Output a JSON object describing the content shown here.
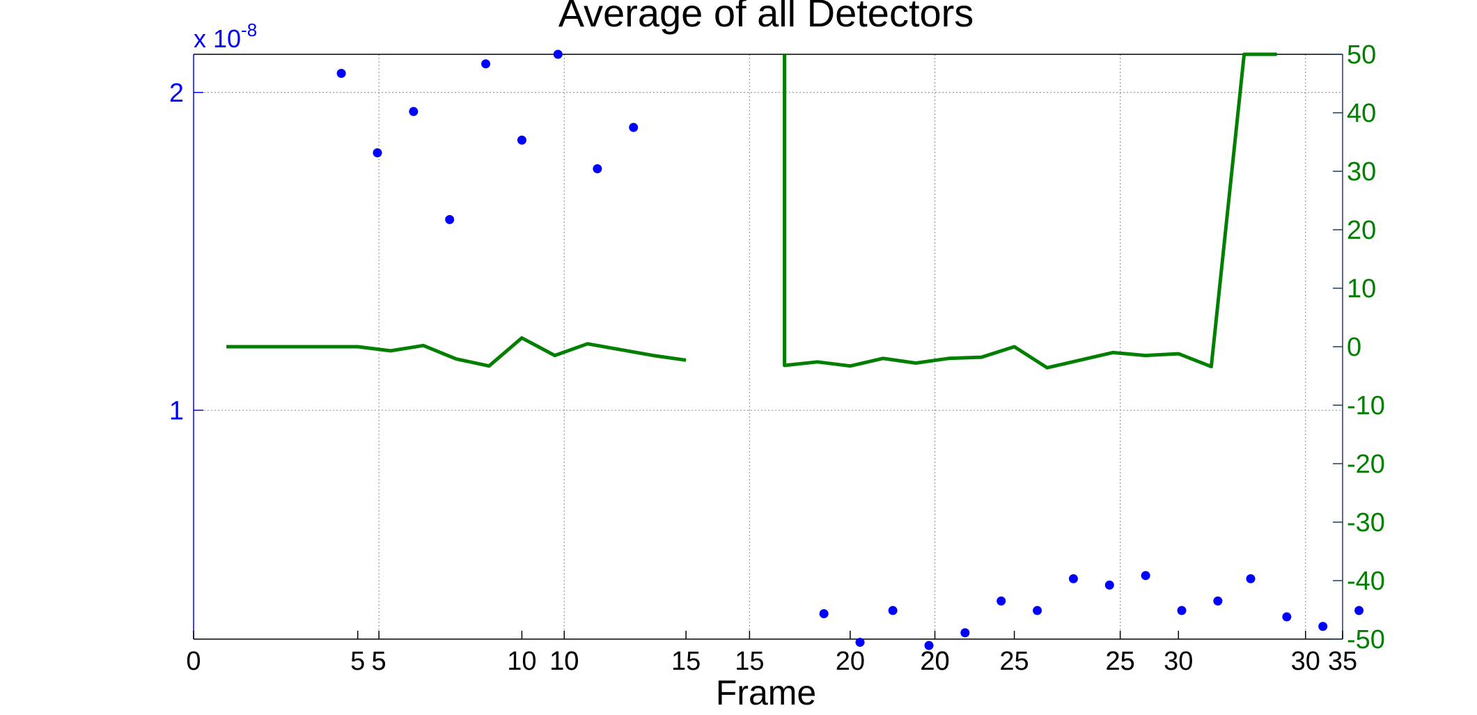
{
  "chart_data": {
    "type": "line",
    "title": "Average of all Detectors",
    "xlabel": "Frame",
    "left_axis": {
      "exponent_label": "x 10",
      "exponent_value": "-8",
      "ylim": [
        0.28,
        2.12
      ],
      "ticks": [
        1,
        2
      ],
      "tick_labels": [
        "1",
        "2"
      ],
      "color": "#0000ff"
    },
    "right_axis": {
      "ylim": [
        -50,
        50
      ],
      "ticks": [
        50,
        40,
        30,
        20,
        10,
        0,
        -10,
        -20,
        -30,
        -40,
        -50
      ],
      "tick_labels": [
        "50",
        "40",
        "30",
        "20",
        "10",
        "0",
        "-10",
        "-20",
        "-30",
        "-40",
        "-50"
      ],
      "color": "#007f00"
    },
    "x_axis_lower": {
      "xlim": [
        0,
        35
      ],
      "ticks": [
        0,
        5,
        10,
        15,
        20,
        25,
        30,
        35
      ],
      "tick_labels": [
        "0",
        "5",
        "10",
        "15",
        "20",
        "25",
        "30",
        "35"
      ]
    },
    "x_axis_upper_run": {
      "xlim": [
        0,
        31
      ],
      "ticks": [
        5,
        10,
        15,
        20,
        25,
        30
      ],
      "tick_labels": [
        "5",
        "10",
        "15",
        "20",
        "25",
        "30"
      ]
    },
    "x_axis_extra_run": {
      "xlim": [
        0,
        31
      ],
      "ticks": [
        5,
        10,
        20,
        25
      ],
      "tick_labels": [
        "5",
        "10",
        "20",
        "25"
      ]
    },
    "grid": true,
    "series": [
      {
        "type": "scatter",
        "axis": "left",
        "color": "#0000ff",
        "x": [
          4.5,
          5.6,
          6.7,
          7.8,
          8.9,
          10.0,
          11.1,
          12.3,
          13.4,
          19.2,
          20.3,
          21.3,
          22.4,
          23.5,
          24.6,
          25.7,
          26.8,
          27.9,
          29.0,
          30.1,
          31.2,
          32.2,
          33.3,
          34.4,
          35.5
        ],
        "values": [
          2.06,
          1.81,
          1.94,
          1.6,
          2.09,
          1.85,
          2.12,
          1.76,
          1.89,
          0.36,
          0.27,
          0.37,
          0.26,
          0.3,
          0.4,
          0.37,
          0.47,
          0.45,
          0.48,
          0.37,
          0.4,
          0.47,
          0.35,
          0.32,
          0.37
        ]
      },
      {
        "type": "line",
        "axis": "right",
        "color": "#007f00",
        "segments": [
          {
            "x": [
              1,
              2,
              3,
              4,
              5,
              6,
              7,
              8,
              9,
              10,
              11,
              12,
              13,
              14,
              15
            ],
            "values": [
              0,
              0,
              0,
              0,
              0,
              -0.7,
              0.2,
              -2.1,
              -3.3,
              1.5,
              -1.5,
              0.5,
              -0.5,
              -1.5,
              -2.3
            ]
          },
          {
            "x": [
              18,
              18,
              19,
              20,
              21,
              22,
              23,
              24,
              25,
              26,
              27,
              28,
              29,
              30,
              31,
              32,
              33
            ],
            "values": [
              50,
              -3.2,
              -2.6,
              -3.3,
              -2.0,
              -2.8,
              -2.0,
              -1.8,
              0,
              -3.6,
              -2.3,
              -1.0,
              -1.5,
              -1.2,
              -3.4,
              50,
              50
            ]
          }
        ]
      }
    ]
  }
}
